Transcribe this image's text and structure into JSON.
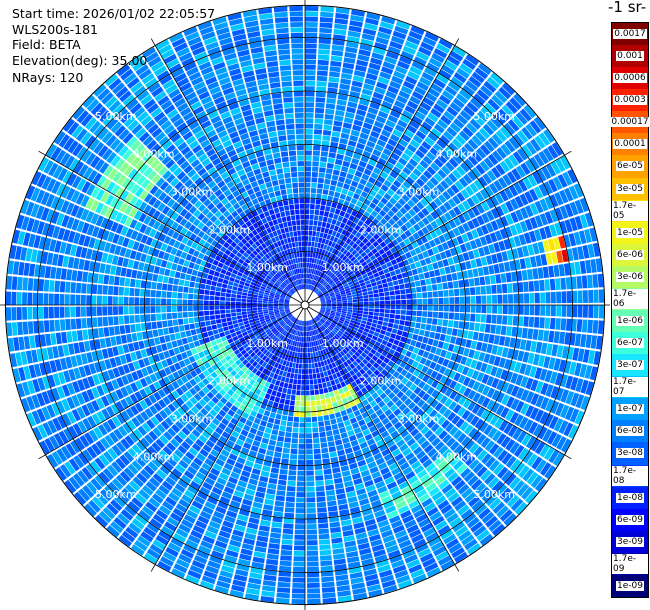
{
  "header": {
    "start_time": "Start time: 2026/01/02 22:05:57",
    "instrument": "WLS200s-181",
    "field": "Field: BETA",
    "elevation": "Elevation(deg): 35.00",
    "nrays": "NRays: 120"
  },
  "colorbar": {
    "unit_label": "-1 sr-",
    "ticks": [
      "0.0017",
      "0.001",
      "0.0006",
      "0.0003",
      "0.00017",
      "0.0001",
      "6e-05",
      "3e-05",
      "1.7e-05",
      "1e-05",
      "6e-06",
      "3e-06",
      "1.7e-06",
      "1e-06",
      "6e-07",
      "3e-07",
      "1.7e-07",
      "1e-07",
      "6e-08",
      "3e-08",
      "1.7e-08",
      "1e-08",
      "6e-09",
      "3e-09",
      "1.7e-09",
      "1e-09"
    ],
    "colors": [
      "#800000",
      "#b00000",
      "#e00000",
      "#ff2200",
      "#ff5500",
      "#ff8000",
      "#ffa200",
      "#ffc000",
      "#ffe000",
      "#f2f51a",
      "#dcf73b",
      "#b4fa64",
      "#8cff8c",
      "#64ffb4",
      "#3cffdc",
      "#1ae6ff",
      "#00c8ff",
      "#00a0ff",
      "#0080ff",
      "#0060ff",
      "#0040ff",
      "#0020ff",
      "#0000ff",
      "#0000d8",
      "#0000a8",
      "#000078"
    ]
  },
  "chart_data": {
    "type": "heatmap",
    "subtype": "polar-ppi",
    "field": "BETA",
    "nrays": 120,
    "elevation_deg": 35.0,
    "range_rings_km": [
      1,
      2,
      3,
      4,
      5
    ],
    "range_labels": [
      "1.00km",
      "2.00km",
      "3.00km",
      "4.00km",
      "5.00km"
    ],
    "max_range_km": 5.6,
    "spokes_deg": [
      0,
      30,
      60,
      90,
      120,
      150,
      180,
      210,
      240,
      270,
      300,
      330
    ],
    "colorscale": "log10 beta, 1e-09 to 0.0017",
    "features": [
      {
        "azimuth_deg_range": [
          205,
          250
        ],
        "range_km": [
          1.6,
          2.3
        ],
        "level": "1e-07 to 1e-06"
      },
      {
        "azimuth_deg_range": [
          295,
          315
        ],
        "range_km": [
          3.6,
          4.4
        ],
        "level": "3e-07 to 3e-06"
      },
      {
        "azimuth_deg_range": [
          150,
          185
        ],
        "range_km": [
          1.7,
          2.1
        ],
        "level": "1e-06 to 1e-05"
      },
      {
        "azimuth_deg_range": [
          75,
          80
        ],
        "range_km": [
          4.6,
          4.9
        ],
        "level": "3e-05 to 1e-04"
      },
      {
        "azimuth_deg_range": [
          135,
          160
        ],
        "range_km": [
          3.8,
          4.3
        ],
        "level": "1e-07 to 6e-07"
      }
    ]
  }
}
